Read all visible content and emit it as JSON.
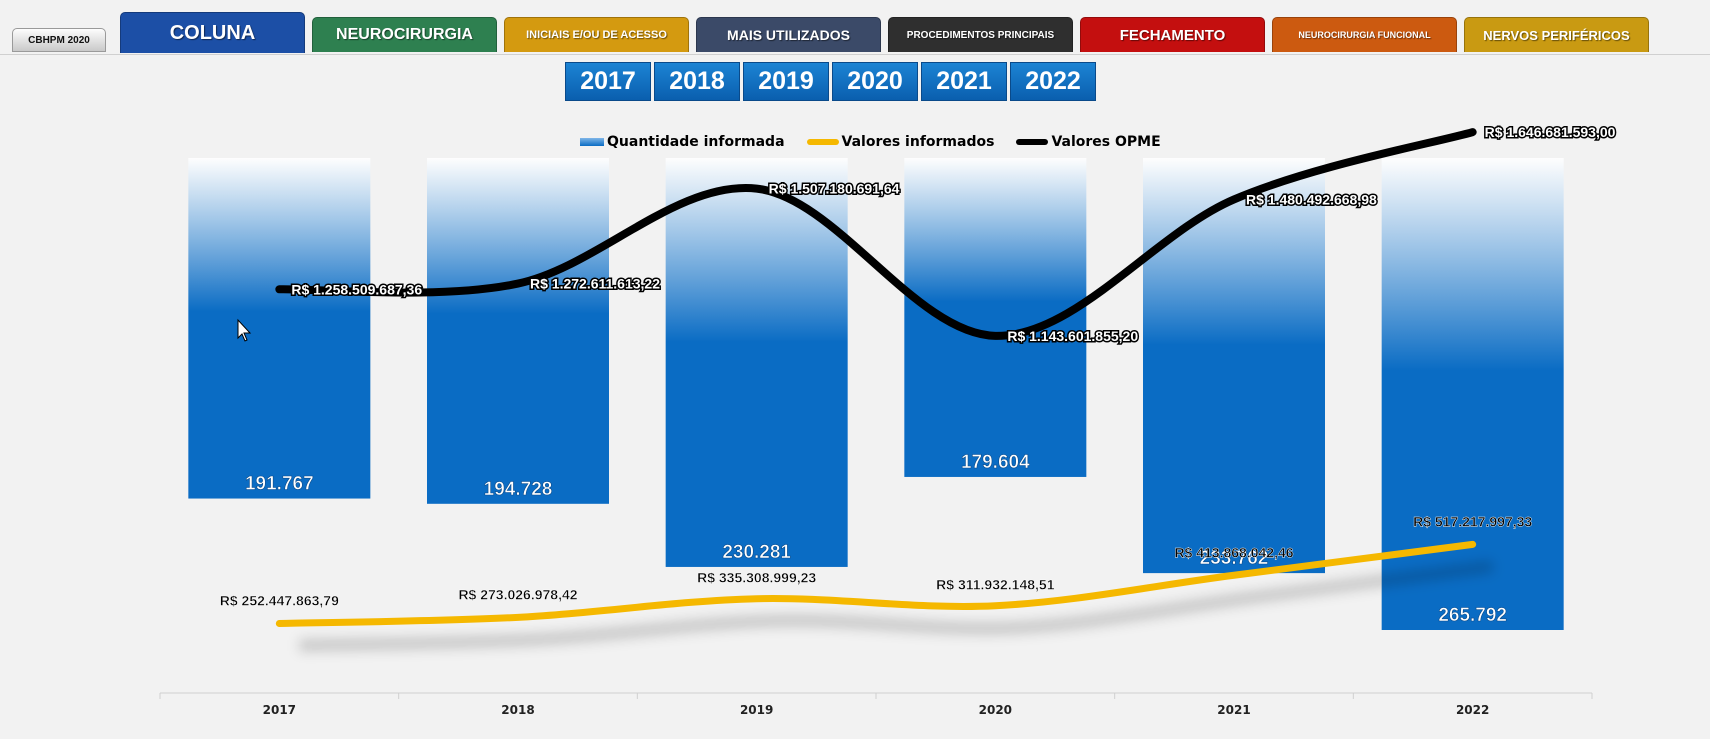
{
  "tabs": [
    {
      "label": "CBHPM 2020",
      "bg": "#dedede",
      "x": 12,
      "w": 94,
      "kind": "cbhpm"
    },
    {
      "label": "COLUNA",
      "bg": "#1c4fa6",
      "x": 120,
      "w": 185,
      "kind": "active"
    },
    {
      "label": "NEUROCIRURGIA",
      "bg": "#2e8050",
      "x": 312,
      "w": 185,
      "kind": "",
      "fs": 16
    },
    {
      "label": "INICIAIS E/OU DE ACESSO",
      "bg": "#d49a10",
      "x": 504,
      "w": 185,
      "kind": "",
      "fs": 11
    },
    {
      "label": "MAIS UTILIZADOS",
      "bg": "#3b4a68",
      "x": 696,
      "w": 185,
      "kind": "",
      "fs": 14
    },
    {
      "label": "PROCEDIMENTOS PRINCIPAIS",
      "bg": "#2f2f2f",
      "x": 888,
      "w": 185,
      "kind": "",
      "fs": 10
    },
    {
      "label": "FECHAMENTO",
      "bg": "#c40f0f",
      "x": 1080,
      "w": 185,
      "kind": "",
      "fs": 15
    },
    {
      "label": "NEUROCIRURGIA FUNCIONAL",
      "bg": "#cc5a10",
      "x": 1272,
      "w": 185,
      "kind": "",
      "fs": 9
    },
    {
      "label": "NERVOS PERIFÉRICOS",
      "bg": "#c99a12",
      "x": 1464,
      "w": 185,
      "kind": "",
      "fs": 13
    }
  ],
  "year_buttons": [
    "2017",
    "2018",
    "2019",
    "2020",
    "2021",
    "2022"
  ],
  "chart_data": {
    "type": "bar",
    "categories": [
      "2017",
      "2018",
      "2019",
      "2020",
      "2021",
      "2022"
    ],
    "series": [
      {
        "name": "Quantidade informada",
        "type": "bar",
        "color": "#0a6cc4",
        "values": [
          191767,
          194728,
          230281,
          179604,
          233762,
          265792
        ],
        "labels": [
          "191.767",
          "194.728",
          "230.281",
          "179.604",
          "233.762",
          "265.792"
        ]
      },
      {
        "name": "Valores informados",
        "type": "line",
        "color": "#f5b800",
        "values": [
          252447863.79,
          273026978.42,
          335308999.23,
          311932148.51,
          413868042.46,
          517217997.33
        ],
        "labels": [
          "R$ 252.447.863,79",
          "R$ 273.026.978,42",
          "R$ 335.308.999,23",
          "R$ 311.932.148,51",
          "R$ 413.868.042,46",
          "R$ 517.217.997,33"
        ]
      },
      {
        "name": "Valores OPME",
        "type": "line",
        "color": "#000000",
        "values": [
          1258509687.36,
          1272611613.22,
          1507180691.64,
          1143601855.2,
          1480492668.98,
          1646681593.0
        ],
        "labels": [
          "R$ 1.258.509.687,36",
          "R$ 1.272.611.613,22",
          "R$ 1.507.180.691,64",
          "R$ 1.143.601.855,20",
          "R$ 1.480.492.668,98",
          "R$ 1.646.681.593,00"
        ]
      }
    ],
    "legend_position": "top",
    "grid": false
  }
}
